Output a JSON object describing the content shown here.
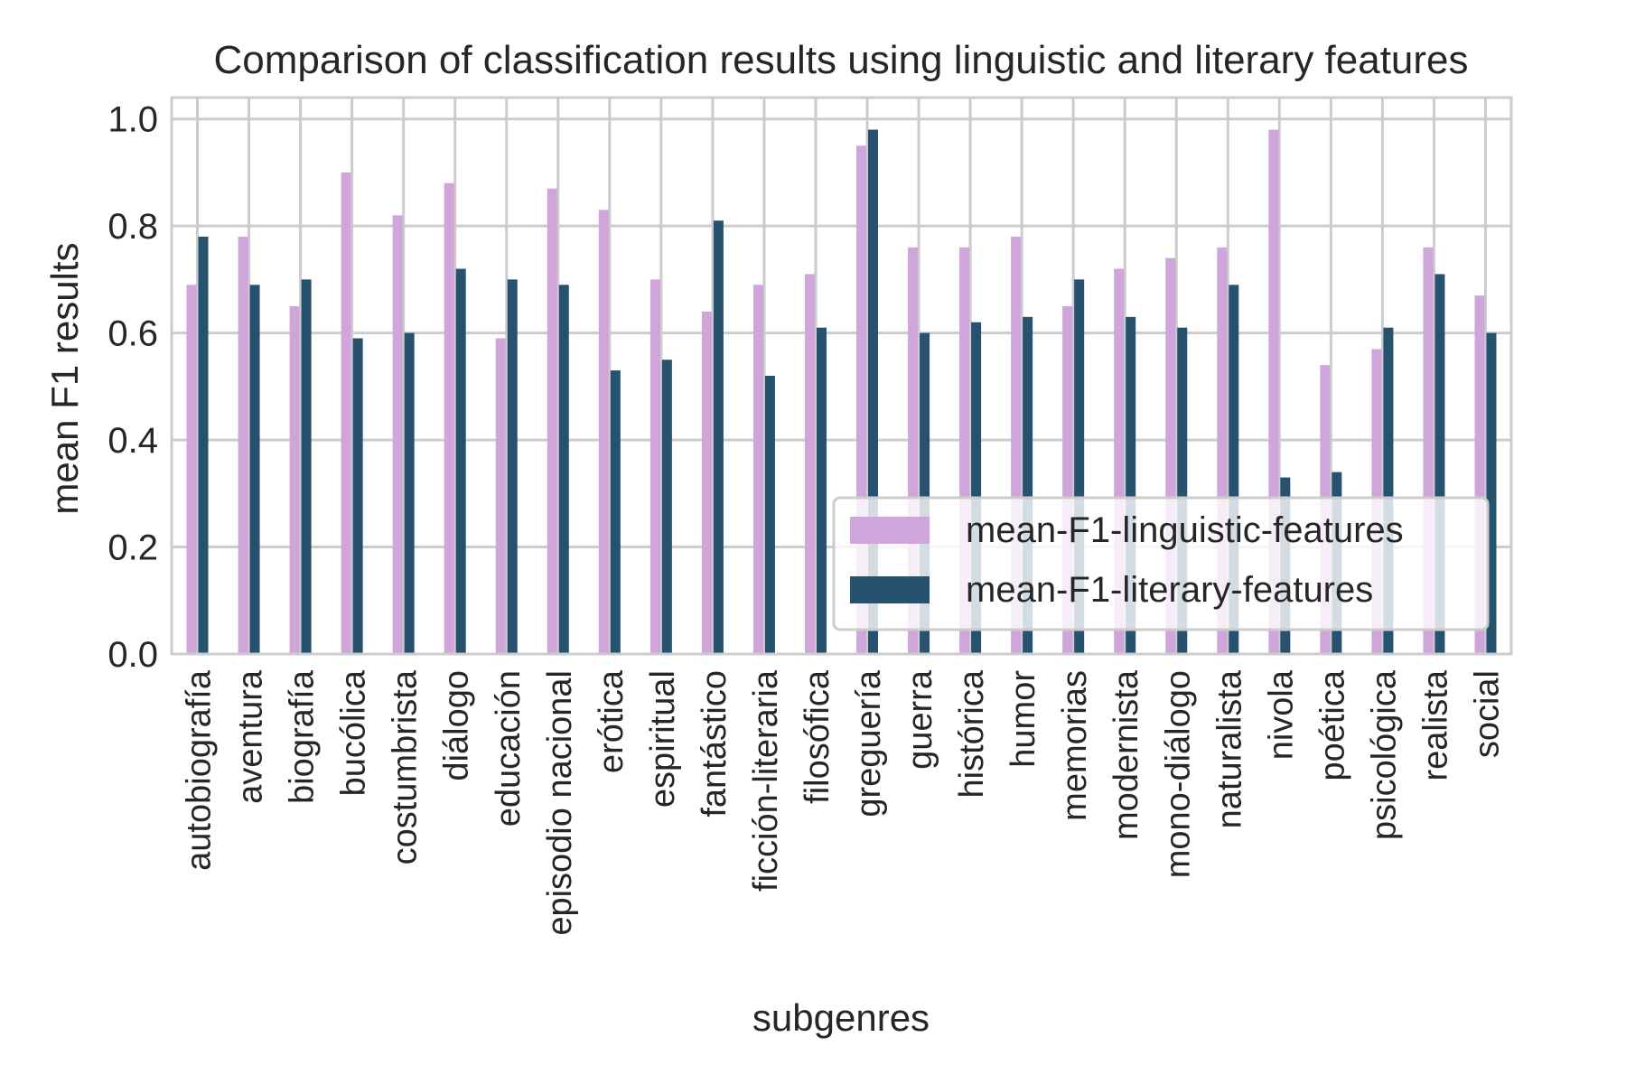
{
  "chart_data": {
    "type": "bar",
    "title": "Comparison of classification results using linguistic and literary features",
    "xlabel": "subgenres",
    "ylabel": "mean F1 results",
    "ylim": [
      0,
      1.04
    ],
    "yticks": [
      "0.0",
      "0.2",
      "0.4",
      "0.6",
      "0.8",
      "1.0"
    ],
    "grid": true,
    "legend_position": "bottom-right",
    "categories": [
      "autobiografía",
      "aventura",
      "biografía",
      "bucólica",
      "costumbrista",
      "diálogo",
      "educación",
      "episodio nacional",
      "erótica",
      "espiritual",
      "fantástico",
      "ficción-literaria",
      "filosófica",
      "greguería",
      "guerra",
      "histórica",
      "humor",
      "memorias",
      "modernista",
      "mono-diálogo",
      "naturalista",
      "nivola",
      "poética",
      "psicológica",
      "realista",
      "social"
    ],
    "series": [
      {
        "name": "mean-F1-linguistic-features",
        "color": "#cfa5dc",
        "values": [
          0.69,
          0.78,
          0.65,
          0.9,
          0.82,
          0.88,
          0.59,
          0.87,
          0.83,
          0.7,
          0.64,
          0.69,
          0.71,
          0.95,
          0.76,
          0.76,
          0.78,
          0.65,
          0.72,
          0.74,
          0.76,
          0.98,
          0.54,
          0.57,
          0.76,
          0.67
        ]
      },
      {
        "name": "mean-F1-literary-features",
        "color": "#26516f",
        "values": [
          0.78,
          0.69,
          0.7,
          0.59,
          0.6,
          0.72,
          0.7,
          0.69,
          0.53,
          0.55,
          0.81,
          0.52,
          0.61,
          0.98,
          0.6,
          0.62,
          0.63,
          0.7,
          0.63,
          0.61,
          0.69,
          0.33,
          0.34,
          0.61,
          0.71,
          0.6
        ]
      }
    ]
  }
}
